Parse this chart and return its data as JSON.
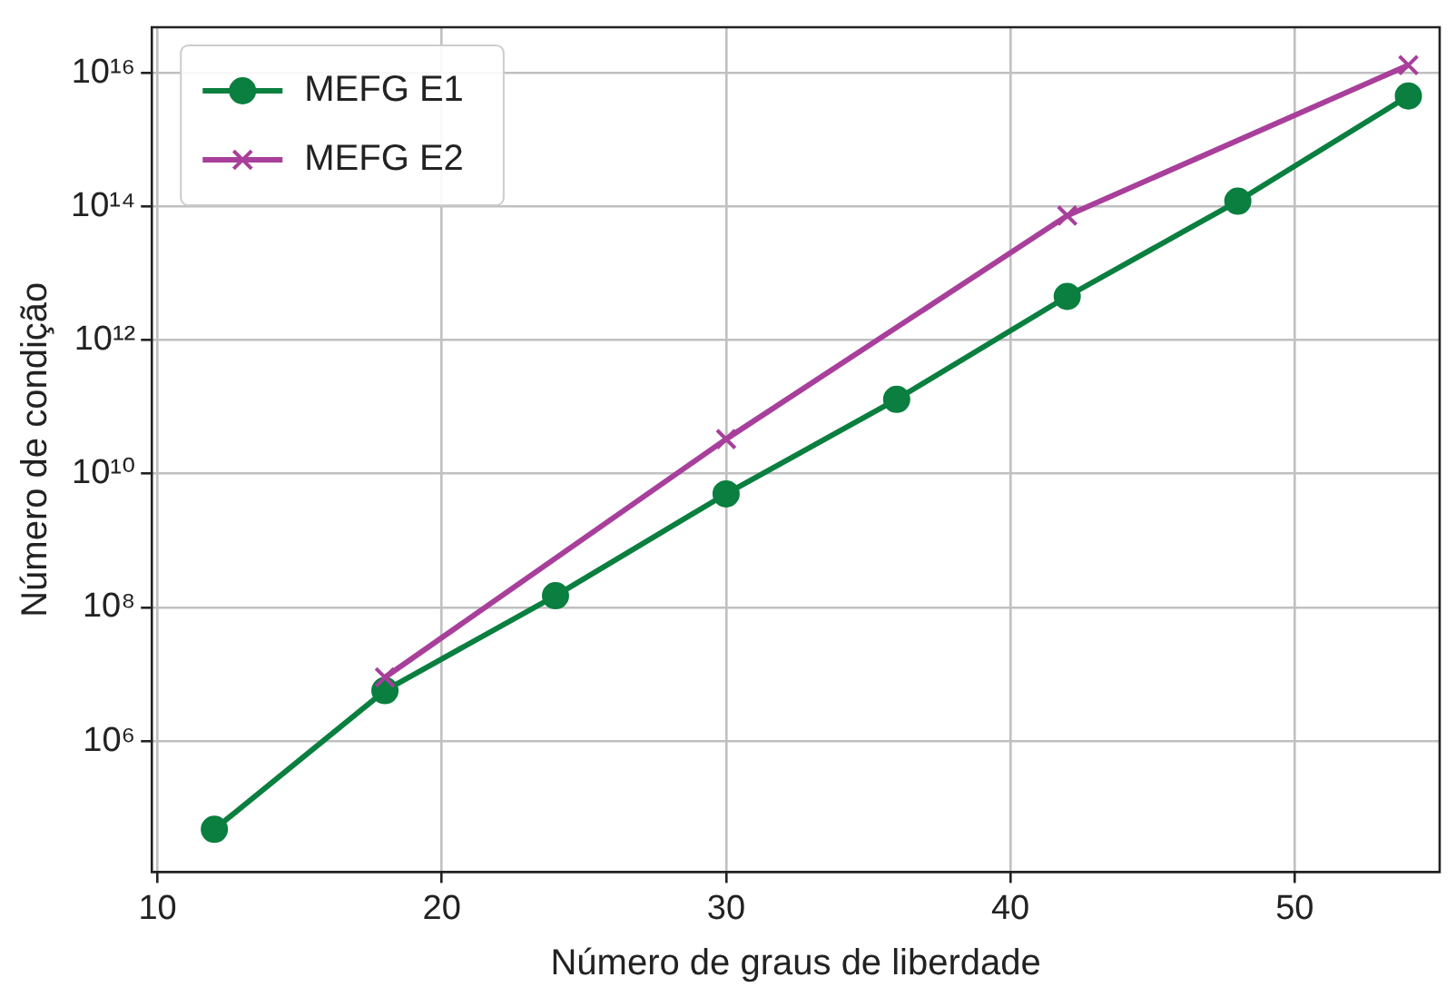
{
  "chart_data": {
    "type": "line",
    "xlabel": "Número de graus de liberdade",
    "ylabel": "Número de condição",
    "log": "y",
    "grid": true,
    "legend": "top left",
    "line_style": "solid",
    "xlim": [
      9.8,
      55.1
    ],
    "xticks": [
      10,
      20,
      30,
      40,
      50
    ],
    "ylim": [
      11000,
      48000000000000000
    ],
    "yticks": [
      {
        "value": 1000000,
        "label": "10⁶"
      },
      {
        "value": 100000000,
        "label": "10⁸"
      },
      {
        "value": 10000000000,
        "label": "10¹⁰"
      },
      {
        "value": 1000000000000,
        "label": "10¹²"
      },
      {
        "value": 100000000000000,
        "label": "10¹⁴"
      },
      {
        "value": 10000000000000000,
        "label": "10¹⁶"
      }
    ],
    "series": [
      {
        "name": "MEFG E1",
        "color": "#0a7f3f",
        "marker": "circle",
        "x": [
          12,
          18,
          24,
          30,
          36,
          42,
          48,
          54
        ],
        "values": [
          48000,
          5700000,
          150000000,
          5000000000,
          130000000000,
          4500000000000,
          120000000000000,
          4500000000000000
        ]
      },
      {
        "name": "MEFG E2",
        "color": "#a83f9b",
        "marker": "cross",
        "x": [
          18,
          30,
          42,
          54
        ],
        "values": [
          9000000,
          33000000000,
          73000000000000,
          13000000000000000
        ]
      }
    ]
  }
}
